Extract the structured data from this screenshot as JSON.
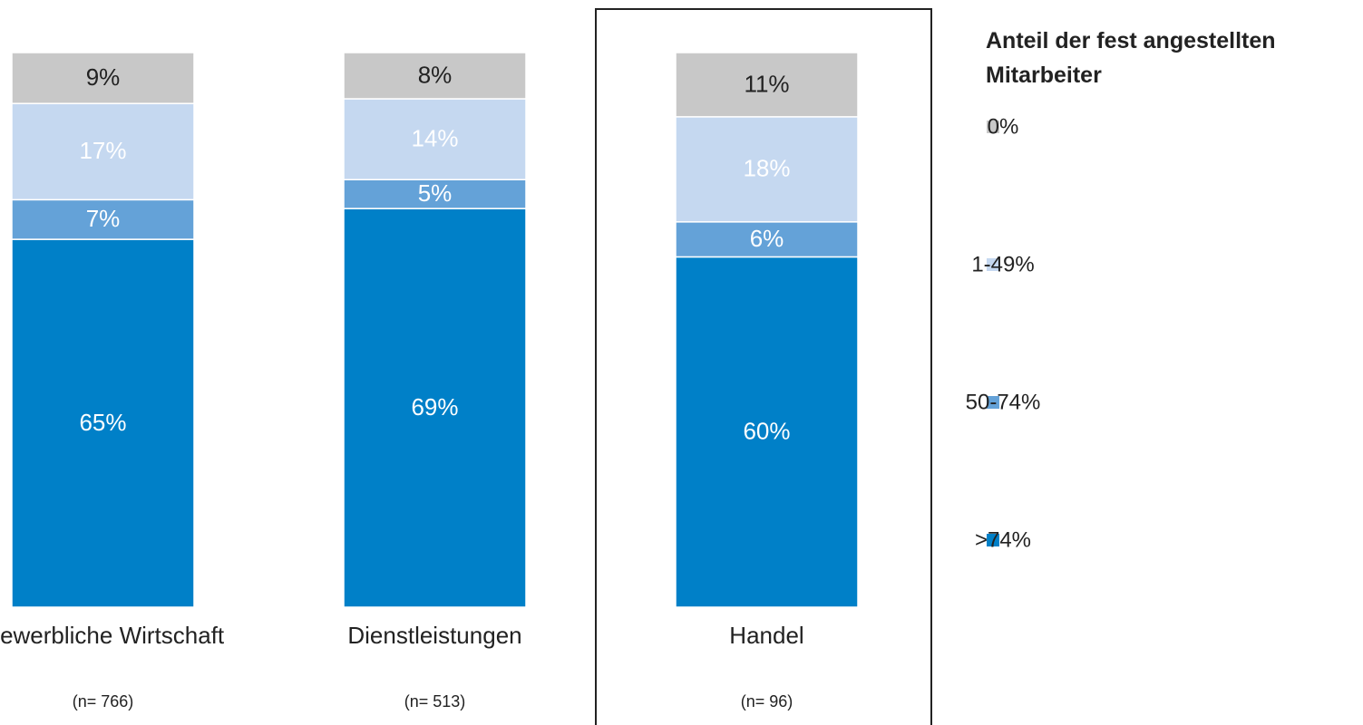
{
  "chart_data": {
    "type": "bar",
    "stacked": true,
    "normalized": true,
    "categories": [
      "Gewerbliche Wirtschaft",
      "Dienstleistungen",
      "Handel"
    ],
    "sample_sizes": [
      "(n= 766)",
      "(n= 513)",
      "(n= 96)"
    ],
    "legend_title": "Anteil der fest angestellten Mitarbeiter",
    "series": [
      {
        "name": ">74%",
        "color": "#0080c8",
        "label_color": "#ffffff",
        "values": [
          65,
          69,
          60
        ],
        "value_labels": [
          "65%",
          "69%",
          "60%"
        ]
      },
      {
        "name": "50-74%",
        "color": "#64a2d8",
        "label_color": "#ffffff",
        "values": [
          7,
          5,
          6
        ],
        "value_labels": [
          "7%",
          "5%",
          "6%"
        ]
      },
      {
        "name": "1-49%",
        "color": "#c5d8f0",
        "label_color": "#ffffff",
        "values": [
          17,
          14,
          18
        ],
        "value_labels": [
          "17%",
          "14%",
          "18%"
        ]
      },
      {
        "name": "0%",
        "color": "#c8c8c8",
        "label_color": "#222222",
        "values": [
          9,
          8,
          11
        ],
        "value_labels": [
          "9%",
          "8%",
          "11%"
        ]
      }
    ]
  }
}
